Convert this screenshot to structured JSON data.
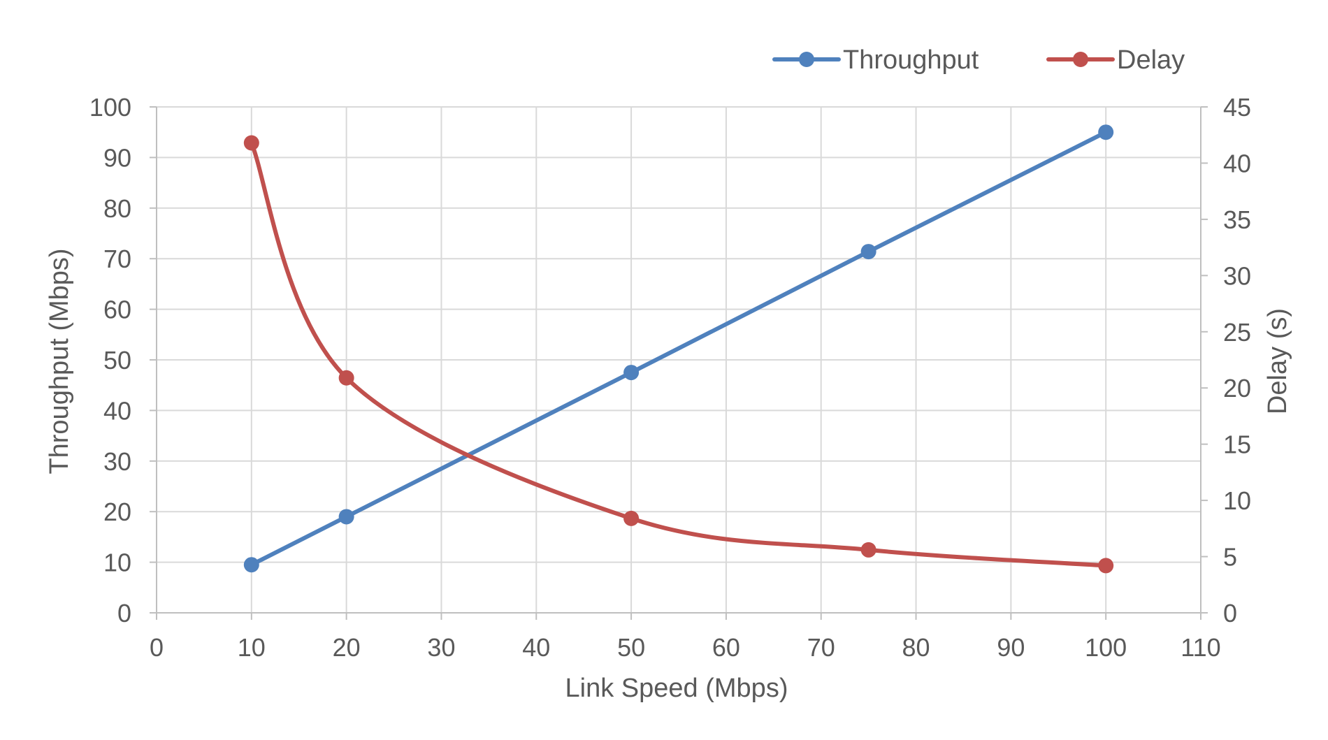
{
  "chart_data": {
    "type": "line",
    "xlabel": "Link Speed (Mbps)",
    "ylabel": "Throughput (Mbps)",
    "y2label": "Delay (s)",
    "xlim": [
      0,
      110
    ],
    "ylim": [
      0,
      100
    ],
    "y2lim": [
      0,
      45
    ],
    "xticks": [
      0,
      10,
      20,
      30,
      40,
      50,
      60,
      70,
      80,
      90,
      100,
      110
    ],
    "yticks": [
      0,
      10,
      20,
      30,
      40,
      50,
      60,
      70,
      80,
      90,
      100
    ],
    "y2ticks": [
      0,
      5,
      10,
      15,
      20,
      25,
      30,
      35,
      40,
      45
    ],
    "grid": true,
    "legend_position": "top-right",
    "x": [
      10,
      20,
      50,
      75,
      100
    ],
    "series": [
      {
        "name": "Throughput",
        "axis": "left",
        "color": "#4f81bd",
        "smooth": false,
        "values": [
          9.5,
          19,
          47.5,
          71.4,
          95
        ]
      },
      {
        "name": "Delay",
        "axis": "right",
        "color": "#c0504d",
        "smooth": true,
        "values": [
          41.8,
          20.9,
          8.4,
          5.6,
          4.2
        ]
      }
    ]
  }
}
